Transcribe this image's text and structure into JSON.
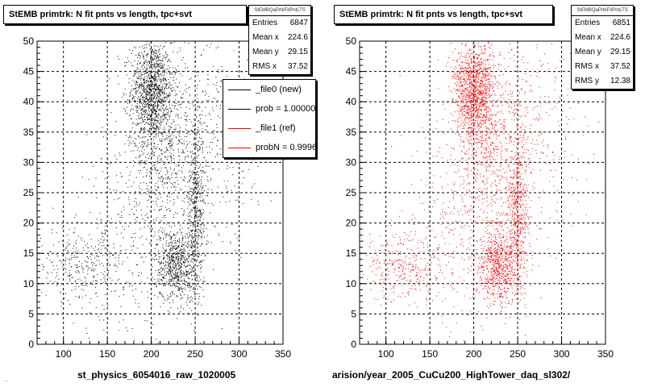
{
  "panels": [
    {
      "title": "StEMB primtrk: N fit pnts vs length, tpc+svt",
      "file_label": "st_physics_6054016_raw_1020005",
      "stats": {
        "header": "StEMBQaPrtkFitPntLTS",
        "rows": [
          {
            "label": "Entries",
            "value": "6847"
          },
          {
            "label": "Mean x",
            "value": "224.6"
          },
          {
            "label": "Mean y",
            "value": "29.15"
          },
          {
            "label": "RMS x",
            "value": "37.52"
          }
        ]
      },
      "legend": [
        {
          "label": "_file0 (new)",
          "color": "#000000"
        },
        {
          "label": "prob = 1.000000",
          "color": "#000000"
        },
        {
          "label": "_file1 (ref)",
          "color": "#ff0000"
        },
        {
          "label": "probN = 0.99962",
          "color": "#ff0000"
        }
      ]
    },
    {
      "title": "StEMB primtrk: N fit pnts vs length, tpc+svt",
      "file_label": "arision/year_2005_CuCu200_HighTower_daq_sl302/",
      "stats": {
        "header": "StEMBQaPrtkFitPntLTS",
        "rows": [
          {
            "label": "Entries",
            "value": "6851"
          },
          {
            "label": "Mean x",
            "value": "224.6"
          },
          {
            "label": "Mean y",
            "value": "29.15"
          },
          {
            "label": "RMS x",
            "value": "37.52"
          },
          {
            "label": "RMS y",
            "value": "12.38"
          }
        ]
      }
    }
  ],
  "footnote": "...",
  "chart_data": [
    {
      "type": "scatter",
      "title": "StEMB primtrk: N fit pnts vs length, tpc+svt",
      "xlabel": "",
      "ylabel": "",
      "xlim": [
        70,
        350
      ],
      "ylim": [
        0,
        50
      ],
      "xticks": [
        100,
        150,
        200,
        250,
        300,
        350
      ],
      "yticks": [
        0,
        5,
        10,
        15,
        20,
        25,
        30,
        35,
        40,
        45,
        50
      ],
      "grid": true,
      "marker_color": "#000000",
      "entries": 6847,
      "clusters": [
        {
          "x_center": 200,
          "y_center": 42,
          "x_spread": 12,
          "y_spread": 4,
          "weight": 0.28
        },
        {
          "x_center": 212,
          "y_center": 33,
          "x_spread": 16,
          "y_spread": 7,
          "weight": 0.14
        },
        {
          "x_center": 228,
          "y_center": 13,
          "x_spread": 12,
          "y_spread": 3,
          "weight": 0.18
        },
        {
          "x_center": 250,
          "y_center": 22,
          "x_spread": 6,
          "y_spread": 7,
          "weight": 0.14
        },
        {
          "x_center": 120,
          "y_center": 13,
          "x_spread": 25,
          "y_spread": 3,
          "weight": 0.08
        },
        {
          "x_center": 260,
          "y_center": 35,
          "x_spread": 30,
          "y_spread": 10,
          "weight": 0.1
        },
        {
          "x_center": 180,
          "y_center": 20,
          "x_spread": 30,
          "y_spread": 10,
          "weight": 0.08
        }
      ]
    },
    {
      "type": "scatter",
      "title": "StEMB primtrk: N fit pnts vs length, tpc+svt",
      "xlabel": "",
      "ylabel": "",
      "xlim": [
        70,
        350
      ],
      "ylim": [
        0,
        50
      ],
      "xticks": [
        100,
        150,
        200,
        250,
        300,
        350
      ],
      "yticks": [
        0,
        5,
        10,
        15,
        20,
        25,
        30,
        35,
        40,
        45,
        50
      ],
      "grid": true,
      "marker_color": "#ff0000",
      "entries": 6851,
      "clusters": [
        {
          "x_center": 200,
          "y_center": 42,
          "x_spread": 12,
          "y_spread": 4,
          "weight": 0.28
        },
        {
          "x_center": 212,
          "y_center": 33,
          "x_spread": 16,
          "y_spread": 7,
          "weight": 0.14
        },
        {
          "x_center": 228,
          "y_center": 13,
          "x_spread": 12,
          "y_spread": 3,
          "weight": 0.18
        },
        {
          "x_center": 250,
          "y_center": 22,
          "x_spread": 6,
          "y_spread": 7,
          "weight": 0.14
        },
        {
          "x_center": 120,
          "y_center": 13,
          "x_spread": 25,
          "y_spread": 3,
          "weight": 0.08
        },
        {
          "x_center": 260,
          "y_center": 35,
          "x_spread": 30,
          "y_spread": 10,
          "weight": 0.1
        },
        {
          "x_center": 180,
          "y_center": 20,
          "x_spread": 30,
          "y_spread": 10,
          "weight": 0.08
        }
      ]
    }
  ]
}
